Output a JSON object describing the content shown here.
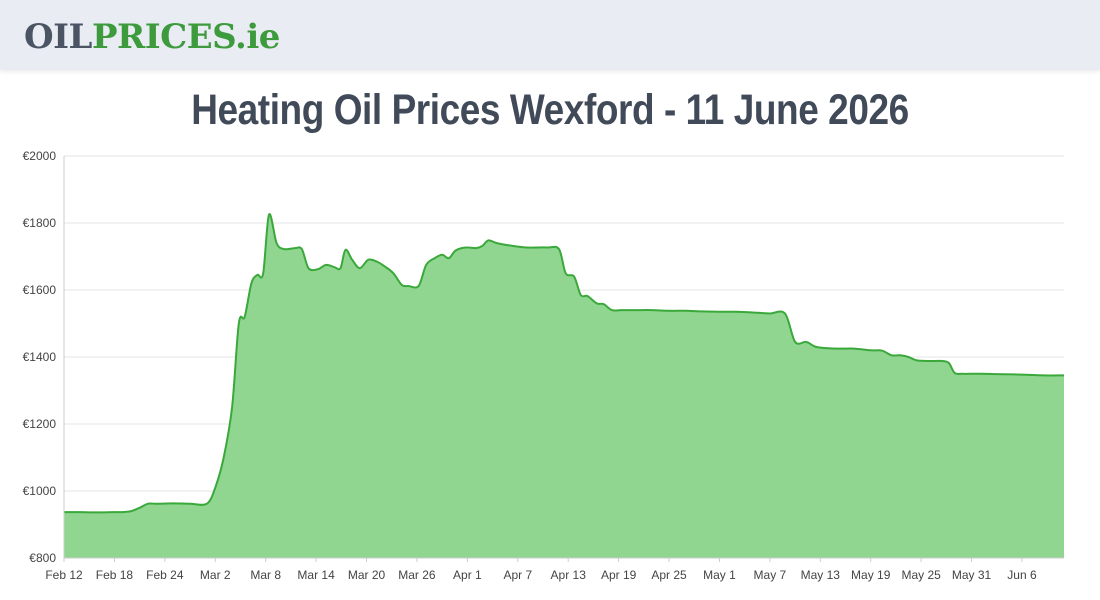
{
  "header": {
    "logo_oil": "OIL",
    "logo_prices": "PRICES",
    "logo_ie": ".ie"
  },
  "title": "Heating Oil Prices Wexford - 11 June 2026",
  "chart_data": {
    "type": "area",
    "title": "Heating Oil Prices Wexford - 11 June 2026",
    "xlabel": "",
    "ylabel": "",
    "ylim": [
      800,
      2000
    ],
    "yticks": [
      800,
      1000,
      1200,
      1400,
      1600,
      1800,
      2000
    ],
    "ytick_labels": [
      "€800",
      "€1000",
      "€1200",
      "€1400",
      "€1600",
      "€1800",
      "€2000"
    ],
    "xticks": [
      {
        "label": "Feb 12",
        "day": 0
      },
      {
        "label": "Feb 18",
        "day": 6
      },
      {
        "label": "Feb 24",
        "day": 12
      },
      {
        "label": "Mar 2",
        "day": 18
      },
      {
        "label": "Mar 8",
        "day": 24
      },
      {
        "label": "Mar 14",
        "day": 30
      },
      {
        "label": "Mar 20",
        "day": 36
      },
      {
        "label": "Mar 26",
        "day": 42
      },
      {
        "label": "Apr 1",
        "day": 48
      },
      {
        "label": "Apr 7",
        "day": 54
      },
      {
        "label": "Apr 13",
        "day": 60
      },
      {
        "label": "Apr 19",
        "day": 66
      },
      {
        "label": "Apr 25",
        "day": 72
      },
      {
        "label": "May 1",
        "day": 78
      },
      {
        "label": "May 7",
        "day": 84
      },
      {
        "label": "May 13",
        "day": 90
      },
      {
        "label": "May 19",
        "day": 96
      },
      {
        "label": "May 25",
        "day": 102
      },
      {
        "label": "May 31",
        "day": 108
      },
      {
        "label": "Jun 6",
        "day": 114
      }
    ],
    "x_range_days": [
      0,
      119
    ],
    "grid": true,
    "colors": {
      "line": "#3aa83a",
      "fill": "#90d690",
      "grid": "#e6e6e6",
      "axis": "#cccccc"
    },
    "series": [
      {
        "points": [
          [
            0,
            937
          ],
          [
            2,
            937
          ],
          [
            4,
            936
          ],
          [
            6,
            937
          ],
          [
            7,
            937
          ],
          [
            8,
            940
          ],
          [
            9,
            950
          ],
          [
            10,
            962
          ],
          [
            11,
            962
          ],
          [
            13,
            963
          ],
          [
            15,
            962
          ],
          [
            17,
            962
          ],
          [
            18,
            1010
          ],
          [
            19,
            1100
          ],
          [
            20,
            1250
          ],
          [
            20.8,
            1500
          ],
          [
            21.5,
            1520
          ],
          [
            22.3,
            1620
          ],
          [
            23,
            1645
          ],
          [
            23.7,
            1650
          ],
          [
            24.4,
            1825
          ],
          [
            25.3,
            1740
          ],
          [
            26.2,
            1722
          ],
          [
            27.5,
            1725
          ],
          [
            28.3,
            1722
          ],
          [
            29.1,
            1665
          ],
          [
            30.2,
            1662
          ],
          [
            31.2,
            1675
          ],
          [
            32.2,
            1668
          ],
          [
            32.9,
            1665
          ],
          [
            33.5,
            1720
          ],
          [
            34.3,
            1690
          ],
          [
            35.2,
            1665
          ],
          [
            36.2,
            1690
          ],
          [
            37.2,
            1685
          ],
          [
            38.2,
            1670
          ],
          [
            39.2,
            1650
          ],
          [
            40.2,
            1615
          ],
          [
            41,
            1612
          ],
          [
            42.2,
            1612
          ],
          [
            43.1,
            1675
          ],
          [
            44.1,
            1695
          ],
          [
            45,
            1705
          ],
          [
            45.8,
            1695
          ],
          [
            46.6,
            1718
          ],
          [
            47.8,
            1727
          ],
          [
            49,
            1725
          ],
          [
            49.8,
            1732
          ],
          [
            50.5,
            1748
          ],
          [
            51.5,
            1740
          ],
          [
            53,
            1733
          ],
          [
            55,
            1727
          ],
          [
            57.5,
            1727
          ],
          [
            58.9,
            1722
          ],
          [
            59.7,
            1650
          ],
          [
            60.7,
            1640
          ],
          [
            61.5,
            1585
          ],
          [
            62.3,
            1582
          ],
          [
            63.4,
            1560
          ],
          [
            64.2,
            1558
          ],
          [
            65.2,
            1540
          ],
          [
            66.3,
            1540
          ],
          [
            68,
            1540
          ],
          [
            70,
            1540
          ],
          [
            72,
            1538
          ],
          [
            74,
            1538
          ],
          [
            76,
            1536
          ],
          [
            78,
            1535
          ],
          [
            80,
            1535
          ],
          [
            82.5,
            1532
          ],
          [
            84,
            1530
          ],
          [
            85.8,
            1530
          ],
          [
            87,
            1445
          ],
          [
            88.3,
            1445
          ],
          [
            89.3,
            1432
          ],
          [
            90,
            1428
          ],
          [
            92,
            1425
          ],
          [
            94,
            1425
          ],
          [
            96,
            1420
          ],
          [
            97,
            1420
          ],
          [
            97.5,
            1418
          ],
          [
            98.5,
            1405
          ],
          [
            99.5,
            1405
          ],
          [
            100.5,
            1400
          ],
          [
            101.5,
            1390
          ],
          [
            103,
            1388
          ],
          [
            104.5,
            1388
          ],
          [
            105.3,
            1382
          ],
          [
            106,
            1352
          ],
          [
            107,
            1350
          ],
          [
            109,
            1350
          ],
          [
            111,
            1349
          ],
          [
            113,
            1348
          ],
          [
            114.5,
            1347
          ],
          [
            116.5,
            1345
          ],
          [
            119,
            1345
          ]
        ]
      }
    ]
  }
}
